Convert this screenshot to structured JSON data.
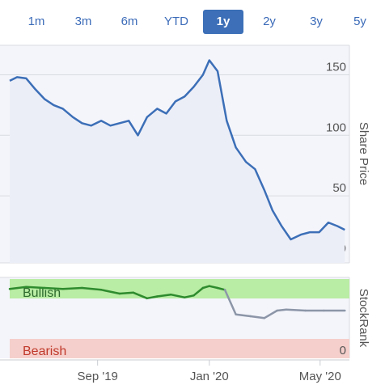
{
  "tabs": [
    {
      "label": "1m",
      "active": false
    },
    {
      "label": "3m",
      "active": false
    },
    {
      "label": "6m",
      "active": false
    },
    {
      "label": "YTD",
      "active": false
    },
    {
      "label": "1y",
      "active": true
    },
    {
      "label": "2y",
      "active": false
    },
    {
      "label": "3y",
      "active": false
    },
    {
      "label": "5y",
      "active": false
    }
  ],
  "colors": {
    "accent": "#3c6fb7",
    "price_line": "#3c6fb7",
    "bullish_band": "#b9eca4",
    "bearish_band": "#f5cfcb",
    "bullish_line": "#2e8b2e",
    "neutral_line": "#8c96a8"
  },
  "chart_data": [
    {
      "type": "line",
      "ylabel": "Share Price",
      "ylim": [
        0,
        165
      ],
      "yticks": [
        "150",
        "100",
        "50",
        "0"
      ],
      "ytick_values": [
        150,
        100,
        50,
        0
      ],
      "xticks": [
        "Sep '19",
        "Jan '20",
        "May '20"
      ],
      "xtick_values": [
        "2019-09-01",
        "2020-01-01",
        "2020-05-01"
      ],
      "x": [
        "2019-05-28",
        "2019-06-05",
        "2019-06-15",
        "2019-06-25",
        "2019-07-05",
        "2019-07-15",
        "2019-07-25",
        "2019-08-05",
        "2019-08-15",
        "2019-08-25",
        "2019-09-05",
        "2019-09-15",
        "2019-09-25",
        "2019-10-05",
        "2019-10-15",
        "2019-10-25",
        "2019-11-05",
        "2019-11-15",
        "2019-11-25",
        "2019-12-05",
        "2019-12-15",
        "2019-12-25",
        "2020-01-01",
        "2020-01-10",
        "2020-01-20",
        "2020-01-30",
        "2020-02-10",
        "2020-02-20",
        "2020-03-01",
        "2020-03-10",
        "2020-03-20",
        "2020-03-30",
        "2020-04-10",
        "2020-04-20",
        "2020-04-30",
        "2020-05-10",
        "2020-05-20",
        "2020-05-28"
      ],
      "series": [
        {
          "values": [
            145,
            148,
            147,
            138,
            130,
            125,
            122,
            115,
            110,
            108,
            112,
            108,
            110,
            112,
            100,
            115,
            122,
            118,
            128,
            132,
            140,
            150,
            162,
            153,
            112,
            90,
            78,
            72,
            55,
            38,
            25,
            14,
            18,
            20,
            20,
            28,
            25,
            22
          ]
        }
      ]
    },
    {
      "type": "line",
      "ylabel": "StockRank",
      "ylim": [
        0,
        100
      ],
      "band_labels": [
        "Bullish",
        "Bearish"
      ],
      "yticks": [
        "0"
      ],
      "ytick_values": [
        0
      ],
      "xticks": [
        "Sep '19",
        "Jan '20",
        "May '20"
      ],
      "xtick_values": [
        "2019-09-01",
        "2020-01-01",
        "2020-05-01"
      ],
      "x": [
        "2019-05-28",
        "2019-06-15",
        "2019-07-05",
        "2019-07-25",
        "2019-08-15",
        "2019-09-05",
        "2019-09-25",
        "2019-10-10",
        "2019-10-25",
        "2019-11-05",
        "2019-11-20",
        "2019-12-05",
        "2019-12-15",
        "2019-12-25",
        "2020-01-01",
        "2020-01-10",
        "2020-01-18",
        "2020-01-30",
        "2020-02-15",
        "2020-03-01",
        "2020-03-15",
        "2020-03-25",
        "2020-04-15",
        "2020-05-05",
        "2020-05-28"
      ],
      "series": [
        {
          "values": [
            93,
            95,
            94,
            93,
            94,
            92,
            88,
            89,
            83,
            85,
            87,
            84,
            86,
            94,
            96,
            94,
            92,
            66,
            64,
            62,
            70,
            71,
            70,
            70,
            70
          ]
        }
      ]
    }
  ]
}
